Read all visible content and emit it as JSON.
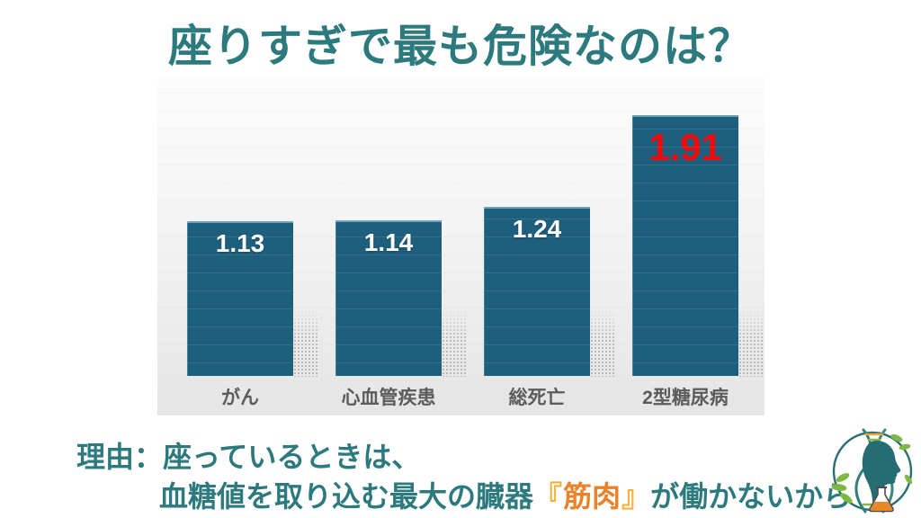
{
  "header": {
    "title": "座りすぎで最も危険なのは？"
  },
  "chart_data": {
    "type": "bar",
    "title": "座りすぎで最も危険なのは？",
    "categories": [
      "がん",
      "心血管疾患",
      "総死亡",
      "2型糖尿病"
    ],
    "values": [
      1.13,
      1.14,
      1.24,
      1.91
    ],
    "value_labels": [
      "1.13",
      "1.14",
      "1.24",
      "1.91"
    ],
    "highlight_index": 3,
    "xlabel": "",
    "ylabel": "",
    "ylim": [
      0,
      2.5
    ],
    "grid": true,
    "legend": "none",
    "bar_color": "#1d5f7d",
    "value_label_color": "#ffffff",
    "highlight_value_color": "#ee0a0a"
  },
  "reason": {
    "line1": "理由：座っているときは、",
    "line2_prefix": "血糖値を取り込む最大の臓器",
    "bracket_open": "『",
    "highlight_word": "筋肉",
    "bracket_close": "』",
    "line2_suffix": "が働かないから"
  },
  "colors": {
    "title_teal": "#2d7a7e",
    "reason_teal": "#2d7a7e",
    "muscle_orange": "#e8832b",
    "bracket_gold": "#f2b23c",
    "bar_teal": "#1d5f7d",
    "value_red": "#ee0a0a",
    "category_gray": "#5b5b5b",
    "panel_gray_top": "#fcfcfc",
    "panel_gray_bottom": "#e5e5e5"
  },
  "logo": {
    "name": "dna-head-science-logo"
  }
}
